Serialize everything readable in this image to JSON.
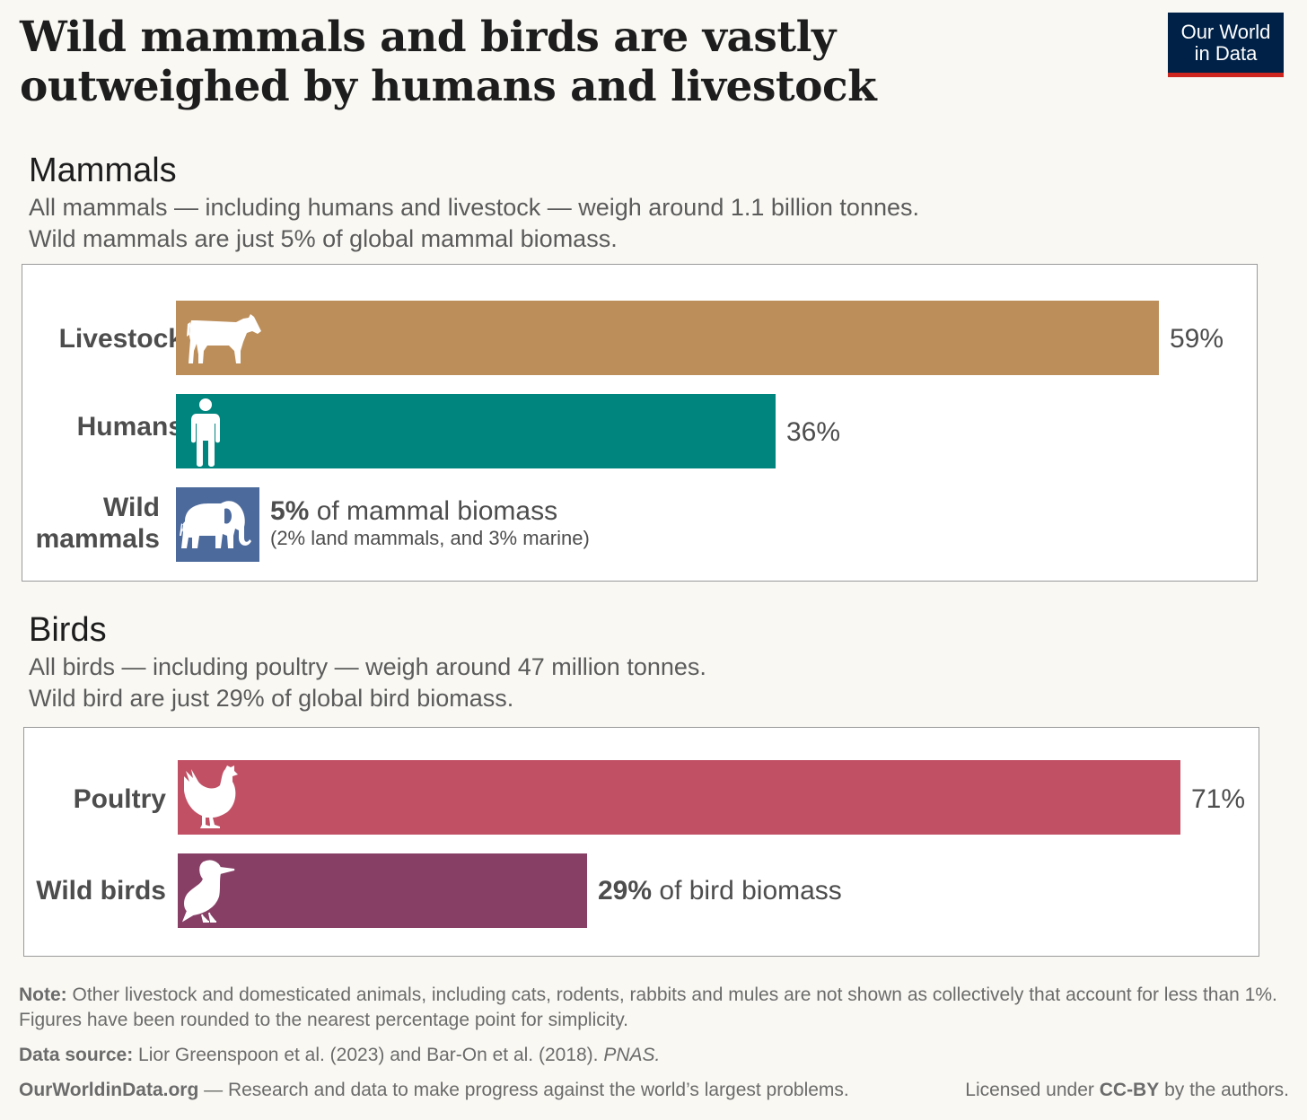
{
  "title": "Wild mammals and birds are vastly outweighed by humans and livestock",
  "logo": {
    "line1": "Our World",
    "line2": "in Data"
  },
  "colors": {
    "livestock": "#bc8e5a",
    "humans": "#00847e",
    "wild_mammals": "#4c6a9c",
    "poultry": "#c15065",
    "wild_birds": "#883f66",
    "logo_bg": "#002147",
    "logo_accent": "#ce261e"
  },
  "mammals": {
    "title": "Mammals",
    "subtitle1": "All mammals — including humans and livestock — weigh around 1.1 billion tonnes.",
    "subtitle2": "Wild mammals are just 5% of global mammal biomass.",
    "wild_value_suffix": " of mammal biomass",
    "wild_breakdown": "(2% land mammals, and 3% marine)"
  },
  "birds": {
    "title": "Birds",
    "subtitle1": "All birds — including poultry — weigh around 47 million tonnes.",
    "subtitle2": "Wild bird are just 29% of global bird biomass.",
    "wild_value_suffix": " of bird biomass"
  },
  "chart_data": [
    {
      "type": "bar",
      "orientation": "horizontal",
      "title": "Mammals",
      "categories": [
        "Livestock",
        "Humans",
        "Wild mammals"
      ],
      "values": [
        59,
        36,
        5
      ],
      "value_labels": [
        "59%",
        "36%",
        "5%"
      ],
      "icons": [
        "cow-icon",
        "person-icon",
        "elephant-icon"
      ],
      "unit": "%",
      "xlim": [
        0,
        59
      ]
    },
    {
      "type": "bar",
      "orientation": "horizontal",
      "title": "Birds",
      "categories": [
        "Poultry",
        "Wild birds"
      ],
      "values": [
        71,
        29
      ],
      "value_labels": [
        "71%",
        "29%"
      ],
      "icons": [
        "chicken-icon",
        "bird-icon"
      ],
      "unit": "%",
      "xlim": [
        0,
        71
      ]
    }
  ],
  "footer": {
    "note_label": "Note:",
    "note_text": " Other livestock and domesticated animals, including cats, rodents, rabbits and mules are not shown as collectively that account for less than 1%. Figures have been rounded to the nearest percentage point for simplicity.",
    "source_label": "Data source:",
    "source_text": " Lior Greenspoon et al. (2023) and Bar-On et al. (2018). ",
    "source_journal": "PNAS.",
    "site": "OurWorldinData.org",
    "tagline": " — Research and data to make progress against the world’s largest problems.",
    "license_prefix": "Licensed under ",
    "license_name": "CC-BY",
    "license_suffix": " by the authors."
  }
}
